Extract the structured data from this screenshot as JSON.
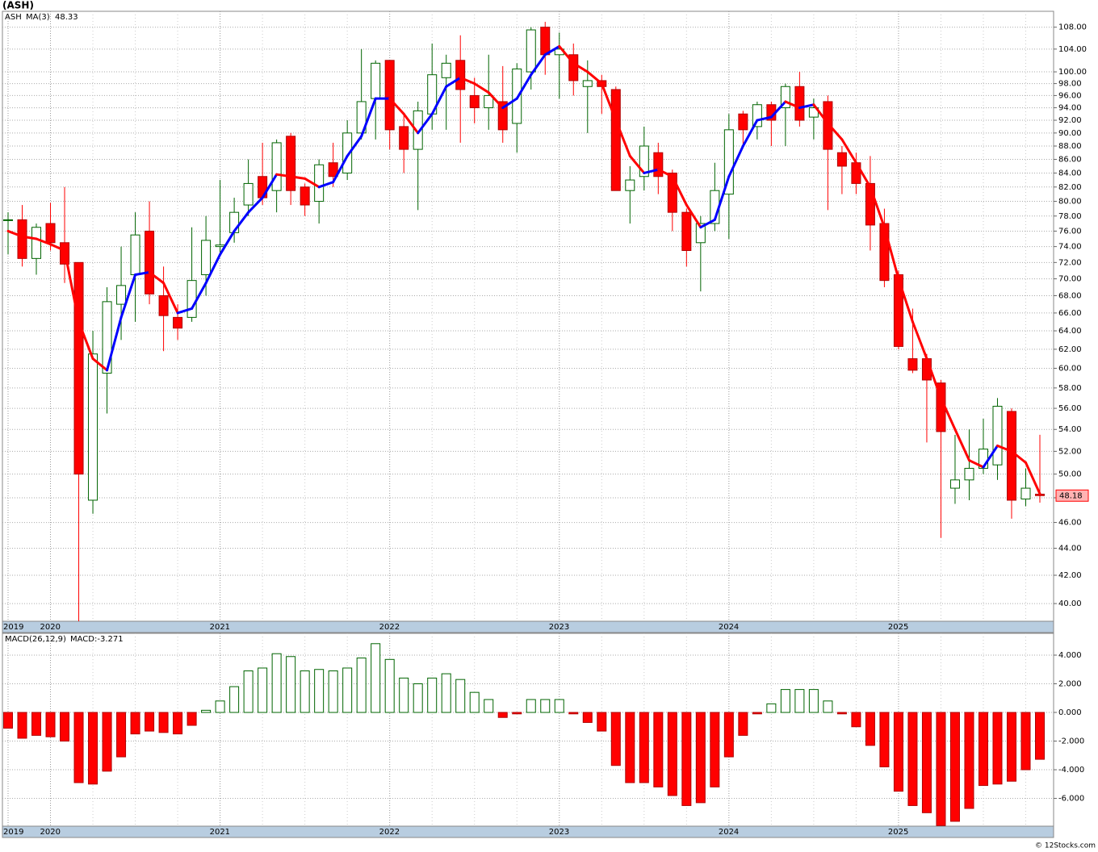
{
  "title": "(ASH)",
  "watermark": "© 12Stocks.com",
  "chart_data": [
    {
      "type": "candlestick",
      "name": "ASH",
      "log": true,
      "grid": true,
      "up_color": "#006400",
      "down_color": "#ff0000",
      "categories": [
        "2019",
        null,
        null,
        "2020",
        null,
        null,
        null,
        null,
        null,
        null,
        null,
        null,
        null,
        null,
        null,
        "2021",
        null,
        null,
        null,
        null,
        null,
        null,
        null,
        null,
        null,
        null,
        null,
        "2022",
        null,
        null,
        null,
        null,
        null,
        null,
        null,
        null,
        null,
        null,
        null,
        "2023",
        null,
        null,
        null,
        null,
        null,
        null,
        null,
        null,
        null,
        null,
        null,
        "2024",
        null,
        null,
        null,
        null,
        null,
        null,
        null,
        null,
        null,
        null,
        null,
        "2025",
        null,
        null,
        null,
        null,
        null,
        null,
        null,
        null,
        null,
        null
      ],
      "open": [
        77.4,
        77.5,
        72.5,
        77,
        74.5,
        72,
        47.8,
        59.5,
        67,
        70.5,
        76,
        68,
        65.5,
        65.5,
        70.5,
        74,
        75.8,
        79.5,
        83.5,
        81.5,
        89.5,
        82,
        80,
        85.5,
        84,
        90,
        95.5,
        102,
        91,
        87.5,
        93,
        99,
        102,
        96,
        94,
        95,
        91.5,
        100,
        108,
        103,
        103,
        97.5,
        98.5,
        97,
        81.5,
        83.5,
        87,
        84,
        78.5,
        74.5,
        77,
        81,
        93,
        91,
        94.5,
        94,
        97.5,
        92.5,
        95,
        87,
        85.5,
        82.5,
        77,
        70.5,
        61,
        61,
        58.5,
        48.8,
        49.5,
        50.5,
        50.8,
        55.7,
        47.9,
        48.3
      ],
      "high": [
        78.5,
        79.5,
        77,
        79.8,
        82,
        72,
        64,
        69,
        74,
        78.5,
        80,
        71.5,
        67,
        76.5,
        78,
        83,
        80.5,
        86,
        88.5,
        89,
        90,
        82.5,
        86,
        88.5,
        92,
        104,
        102,
        102,
        93,
        95,
        105,
        103,
        106.5,
        99,
        103,
        101,
        101.5,
        108,
        109,
        107,
        105,
        102,
        99.5,
        97.5,
        85,
        91,
        88.5,
        84.5,
        79,
        78,
        85.5,
        93,
        93.5,
        95,
        95,
        98,
        100,
        95.5,
        96,
        88,
        87,
        86.5,
        79,
        71,
        66.5,
        61.5,
        58.8,
        53.5,
        54,
        55,
        57,
        56,
        50.5,
        53.5
      ],
      "low": [
        73,
        71.5,
        70.5,
        73.5,
        69.5,
        38.8,
        46.7,
        55.5,
        63,
        65,
        67,
        61.8,
        63,
        65,
        68,
        73,
        74.5,
        78,
        79.5,
        78.5,
        79.5,
        78,
        77,
        82,
        83,
        89,
        89,
        87.5,
        84,
        78.8,
        90.5,
        90.5,
        88.5,
        91.5,
        90.5,
        88.5,
        87,
        97,
        99.5,
        95.5,
        96,
        90,
        93,
        81.5,
        77,
        81.5,
        81,
        76,
        71.5,
        68.5,
        76,
        75,
        88,
        89,
        88,
        88,
        91,
        89,
        78.8,
        81,
        81,
        73.5,
        69,
        62,
        59.5,
        52.8,
        44.8,
        47.5,
        47.8,
        50,
        49.5,
        46.3,
        47.3,
        47.6
      ],
      "close": [
        77.5,
        72.5,
        76.5,
        74.5,
        71.8,
        50,
        61.5,
        67.3,
        69.2,
        75.5,
        68.2,
        65.7,
        64.3,
        69.8,
        74.8,
        74.2,
        78.5,
        82.5,
        80.5,
        88.5,
        81.5,
        79.5,
        85.2,
        83.5,
        90,
        95,
        101.5,
        90.5,
        87.5,
        93.5,
        99.5,
        101.5,
        97,
        94,
        96,
        90.5,
        100.5,
        107.5,
        103,
        104,
        98.5,
        98.5,
        97.5,
        81.5,
        83,
        88,
        83.5,
        78.5,
        73.5,
        77,
        81.5,
        90.5,
        90.5,
        94.5,
        92,
        97.5,
        92,
        94,
        87.5,
        85,
        82.5,
        76.8,
        69.8,
        62.3,
        59.8,
        58.8,
        53.8,
        49.5,
        50.5,
        52.2,
        56.2,
        47.8,
        48.8,
        48.18
      ],
      "overlay": {
        "name": "MA(3)",
        "up_color": "#0000ff",
        "down_color": "#ff0000",
        "values": [
          76,
          75.3,
          75,
          74.3,
          73.5,
          65,
          61,
          59.8,
          65.5,
          70.5,
          70.8,
          69.5,
          66,
          66.5,
          69.5,
          73,
          76,
          78.5,
          80.5,
          83.8,
          83.5,
          83.2,
          82,
          82.7,
          86.5,
          89.5,
          95.5,
          95.5,
          93,
          90,
          93,
          97.5,
          99,
          98,
          96.5,
          94,
          95.5,
          99.5,
          103,
          104.5,
          101.5,
          100,
          98,
          92,
          86.5,
          84,
          84.5,
          83.5,
          79.5,
          76.5,
          77.5,
          83.5,
          88,
          92,
          92.5,
          95,
          94,
          94.5,
          91.5,
          89,
          85.5,
          82,
          76.5,
          70,
          65,
          61,
          57,
          54,
          51.2,
          50.6,
          52.5,
          52,
          51,
          48.33
        ]
      },
      "ylim": [
        38.8,
        111
      ],
      "yticks": [
        {
          "value": 40,
          "label": "40.00"
        },
        {
          "value": 42,
          "label": "42.00"
        },
        {
          "value": 44,
          "label": "44.00"
        },
        {
          "value": 46,
          "label": "46.00"
        },
        {
          "value": 48,
          "label": "48.00"
        },
        {
          "value": 50,
          "label": "50.00"
        },
        {
          "value": 52,
          "label": "52.00"
        },
        {
          "value": 54,
          "label": "54.00"
        },
        {
          "value": 56,
          "label": "56.00"
        },
        {
          "value": 58,
          "label": "58.00"
        },
        {
          "value": 60,
          "label": "60.00"
        },
        {
          "value": 62,
          "label": "62.00"
        },
        {
          "value": 64,
          "label": "64.00"
        },
        {
          "value": 66,
          "label": "66.00"
        },
        {
          "value": 68,
          "label": "68.00"
        },
        {
          "value": 70,
          "label": "70.00"
        },
        {
          "value": 72,
          "label": "72.00"
        },
        {
          "value": 74,
          "label": "74.00"
        },
        {
          "value": 76,
          "label": "76.00"
        },
        {
          "value": 78,
          "label": "78.00"
        },
        {
          "value": 80,
          "label": "80.00"
        },
        {
          "value": 82,
          "label": "82.00"
        },
        {
          "value": 84,
          "label": "84.00"
        },
        {
          "value": 86,
          "label": "86.00"
        },
        {
          "value": 88,
          "label": "88.00"
        },
        {
          "value": 90,
          "label": "90.00"
        },
        {
          "value": 92,
          "label": "92.00"
        },
        {
          "value": 94,
          "label": "94.00"
        },
        {
          "value": 96,
          "label": "96.00"
        },
        {
          "value": 98,
          "label": "98.00"
        },
        {
          "value": 100,
          "label": "100.00"
        },
        {
          "value": 104,
          "label": "104.00"
        },
        {
          "value": 108,
          "label": "108.00"
        }
      ]
    },
    {
      "type": "bar",
      "name": "MACD(26,12,9)",
      "series_label": "MACD:",
      "grid": true,
      "up_color": "#006400",
      "down_color": "#ff0000",
      "values": [
        -1.1,
        -1.8,
        -1.6,
        -1.7,
        -2.0,
        -4.9,
        -5.0,
        -4.1,
        -3.1,
        -1.5,
        -1.3,
        -1.4,
        -1.5,
        -0.9,
        0.15,
        0.8,
        1.8,
        2.9,
        3.1,
        4.1,
        3.9,
        2.9,
        3.0,
        2.9,
        3.1,
        3.8,
        4.8,
        3.7,
        2.4,
        2.0,
        2.4,
        2.7,
        2.3,
        1.4,
        0.9,
        -0.35,
        -0.1,
        0.9,
        0.9,
        0.9,
        -0.1,
        -0.7,
        -1.3,
        -3.7,
        -4.9,
        -4.9,
        -5.2,
        -5.8,
        -6.5,
        -6.3,
        -5.2,
        -3.1,
        -1.6,
        -0.1,
        0.6,
        1.6,
        1.6,
        1.6,
        0.8,
        -0.1,
        -1.0,
        -2.3,
        -3.8,
        -5.5,
        -6.5,
        -7.0,
        -7.9,
        -7.6,
        -6.7,
        -5.1,
        -5.0,
        -4.8,
        -4.0,
        -3.271
      ],
      "ylim": [
        -7.94,
        5.52
      ],
      "yticks": [
        {
          "value": 4,
          "label": "4.000"
        },
        {
          "value": 2,
          "label": "2.000"
        },
        {
          "value": 0,
          "label": "0.000"
        },
        {
          "value": -2,
          "label": "-2.000"
        },
        {
          "value": -4,
          "label": "-4.000"
        },
        {
          "value": -6,
          "label": "-6.000"
        }
      ]
    }
  ]
}
